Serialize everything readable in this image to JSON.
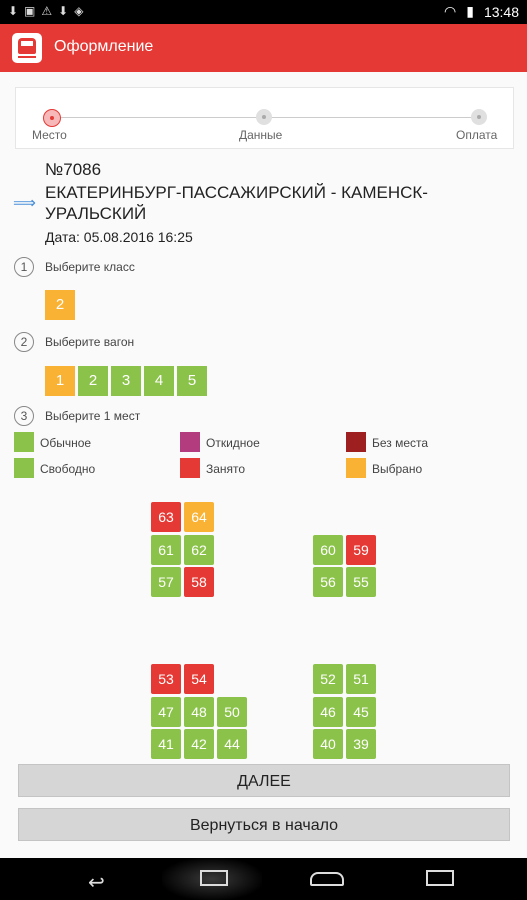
{
  "status_bar": {
    "time": "13:48"
  },
  "app_bar": {
    "title": "Оформление"
  },
  "steps": [
    {
      "label": "Место",
      "active": true
    },
    {
      "label": "Данные",
      "active": false
    },
    {
      "label": "Оплата",
      "active": false
    }
  ],
  "train": {
    "number": "№7086",
    "route": "ЕКАТЕРИНБУРГ-ПАССАЖИРСКИЙ - КАМЕНСК-УРАЛЬСКИЙ",
    "date": "Дата: 05.08.2016 16:25"
  },
  "class_step": {
    "num": "1",
    "label": "Выберите класс",
    "options": [
      "2"
    ]
  },
  "wagon_step": {
    "num": "2",
    "label": "Выберите вагон",
    "options": [
      "1",
      "2",
      "3",
      "4",
      "5"
    ],
    "selected": "1"
  },
  "seat_step": {
    "num": "3",
    "label": "Выберите 1 мест"
  },
  "legend": [
    {
      "label": "Обычное",
      "color": "#8bc34a"
    },
    {
      "label": "Откидное",
      "color": "#b33c7f"
    },
    {
      "label": "Без места",
      "color": "#9e1f1f"
    },
    {
      "label": "Свободно",
      "color": "#8bc34a"
    },
    {
      "label": "Занято",
      "color": "#e53935"
    },
    {
      "label": "Выбрано",
      "color": "#f9b233"
    }
  ],
  "seats": [
    {
      "n": "63",
      "status": "occupied"
    },
    {
      "n": "64",
      "status": "selected"
    },
    {
      "n": "61",
      "status": "free"
    },
    {
      "n": "62",
      "status": "free"
    },
    {
      "n": "57",
      "status": "free"
    },
    {
      "n": "58",
      "status": "occupied"
    },
    {
      "n": "60",
      "status": "free"
    },
    {
      "n": "59",
      "status": "occupied"
    },
    {
      "n": "56",
      "status": "free"
    },
    {
      "n": "55",
      "status": "free"
    },
    {
      "n": "53",
      "status": "occupied"
    },
    {
      "n": "54",
      "status": "occupied"
    },
    {
      "n": "47",
      "status": "free"
    },
    {
      "n": "48",
      "status": "free"
    },
    {
      "n": "50",
      "status": "free"
    },
    {
      "n": "41",
      "status": "free"
    },
    {
      "n": "42",
      "status": "free"
    },
    {
      "n": "44",
      "status": "free"
    },
    {
      "n": "52",
      "status": "free"
    },
    {
      "n": "51",
      "status": "free"
    },
    {
      "n": "46",
      "status": "free"
    },
    {
      "n": "45",
      "status": "free"
    },
    {
      "n": "40",
      "status": "free"
    },
    {
      "n": "39",
      "status": "free"
    }
  ],
  "buttons": {
    "next": "ДАЛЕЕ",
    "back_to_start": "Вернуться в начало"
  }
}
